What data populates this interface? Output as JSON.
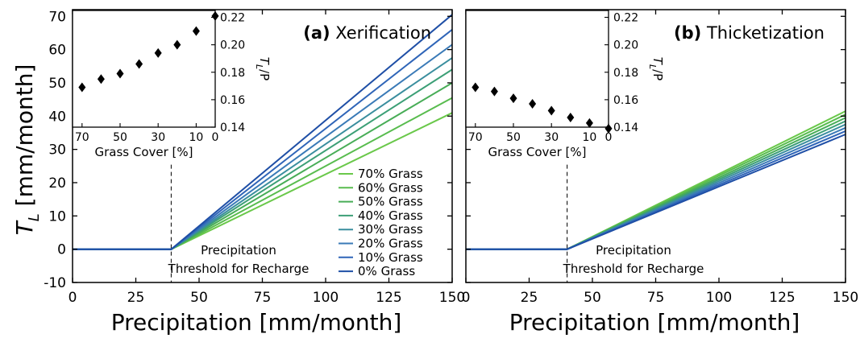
{
  "figure": {
    "ylabel_main": "T",
    "ylabel_sub": "L",
    "ylabel_unit": " [mm/month]",
    "xlabel": "Precipitation [mm/month]",
    "annotation_line1": "Precipitation",
    "annotation_line2": "Threshold for Recharge",
    "inset_xlabel": "Grass Cover [%]",
    "inset_ylabel_main": "T",
    "inset_ylabel_sub": "L",
    "inset_ylabel_rest": "/P",
    "threshold_precip": 39,
    "colors": [
      "#6ac84a",
      "#58bc4e",
      "#48ad57",
      "#3c9f76",
      "#3a8e9e",
      "#3a7ab7",
      "#2f65b8",
      "#1f4fa6"
    ]
  },
  "legend": [
    "70% Grass",
    "60% Grass",
    "50% Grass",
    "40% Grass",
    "30% Grass",
    "20% Grass",
    "10% Grass",
    "0% Grass"
  ],
  "chart_data": [
    {
      "type": "line",
      "panel_letter": "(a)",
      "panel_name": "Xerification",
      "xlabel": "Precipitation [mm/month]",
      "ylabel": "T_L [mm/month]",
      "xlim": [
        0,
        150
      ],
      "ylim": [
        -10,
        72
      ],
      "xticks": [
        0,
        25,
        50,
        75,
        100,
        125,
        150
      ],
      "yticks": [
        -10,
        0,
        10,
        20,
        30,
        40,
        50,
        60,
        70
      ],
      "series": [
        {
          "name": "70% Grass",
          "x": [
            0,
            39,
            150
          ],
          "y": [
            0,
            0,
            41
          ]
        },
        {
          "name": "60% Grass",
          "x": [
            0,
            39,
            150
          ],
          "y": [
            0,
            0,
            45.5
          ]
        },
        {
          "name": "50% Grass",
          "x": [
            0,
            39,
            150
          ],
          "y": [
            0,
            0,
            50
          ]
        },
        {
          "name": "40% Grass",
          "x": [
            0,
            39,
            150
          ],
          "y": [
            0,
            0,
            54
          ]
        },
        {
          "name": "30% Grass",
          "x": [
            0,
            39,
            150
          ],
          "y": [
            0,
            0,
            57.5
          ]
        },
        {
          "name": "20% Grass",
          "x": [
            0,
            39,
            150
          ],
          "y": [
            0,
            0,
            61.5
          ]
        },
        {
          "name": "10% Grass",
          "x": [
            0,
            39,
            150
          ],
          "y": [
            0,
            0,
            66
          ]
        },
        {
          "name": "0% Grass",
          "x": [
            0,
            39,
            150
          ],
          "y": [
            0,
            0,
            70.5
          ]
        }
      ],
      "inset": {
        "type": "scatter",
        "xlabel": "Grass Cover [%]",
        "ylabel": "T_L/P",
        "xlim": [
          75,
          0
        ],
        "ylim": [
          0.14,
          0.225
        ],
        "xticks": [
          70,
          50,
          30,
          10,
          0
        ],
        "yticks": [
          0.14,
          0.16,
          0.18,
          0.2,
          0.22
        ],
        "x": [
          70,
          60,
          50,
          40,
          30,
          20,
          10,
          0
        ],
        "y": [
          0.169,
          0.175,
          0.179,
          0.186,
          0.194,
          0.2,
          0.21,
          0.221
        ]
      }
    },
    {
      "type": "line",
      "panel_letter": "(b)",
      "panel_name": "Thicketization",
      "xlabel": "Precipitation [mm/month]",
      "ylabel": "",
      "xlim": [
        0,
        150
      ],
      "ylim": [
        -10,
        72
      ],
      "xticks": [
        0,
        25,
        50,
        75,
        100,
        125,
        150
      ],
      "yticks": [
        -10,
        0,
        10,
        20,
        30,
        40,
        50,
        60,
        70
      ],
      "series": [
        {
          "name": "70% Grass",
          "x": [
            0,
            40,
            150
          ],
          "y": [
            0,
            0,
            41.5
          ]
        },
        {
          "name": "60% Grass",
          "x": [
            0,
            40,
            150
          ],
          "y": [
            0,
            0,
            40.5
          ]
        },
        {
          "name": "50% Grass",
          "x": [
            0,
            40,
            150
          ],
          "y": [
            0,
            0,
            39.5
          ]
        },
        {
          "name": "40% Grass",
          "x": [
            0,
            40,
            150
          ],
          "y": [
            0,
            0,
            38.5
          ]
        },
        {
          "name": "30% Grass",
          "x": [
            0,
            40,
            150
          ],
          "y": [
            0,
            0,
            37.5
          ]
        },
        {
          "name": "20% Grass",
          "x": [
            0,
            40,
            150
          ],
          "y": [
            0,
            0,
            36.5
          ]
        },
        {
          "name": "10% Grass",
          "x": [
            0,
            40,
            150
          ],
          "y": [
            0,
            0,
            35.5
          ]
        },
        {
          "name": "0% Grass",
          "x": [
            0,
            40,
            150
          ],
          "y": [
            0,
            0,
            34.5
          ]
        }
      ],
      "inset": {
        "type": "scatter",
        "xlabel": "Grass Cover [%]",
        "ylabel": "T_L/P",
        "xlim": [
          75,
          0
        ],
        "ylim": [
          0.14,
          0.225
        ],
        "xticks": [
          70,
          50,
          30,
          10,
          0
        ],
        "yticks": [
          0.14,
          0.16,
          0.18,
          0.2,
          0.22
        ],
        "x": [
          70,
          60,
          50,
          40,
          30,
          20,
          10,
          0
        ],
        "y": [
          0.169,
          0.166,
          0.161,
          0.157,
          0.152,
          0.147,
          0.143,
          0.139
        ]
      }
    }
  ]
}
